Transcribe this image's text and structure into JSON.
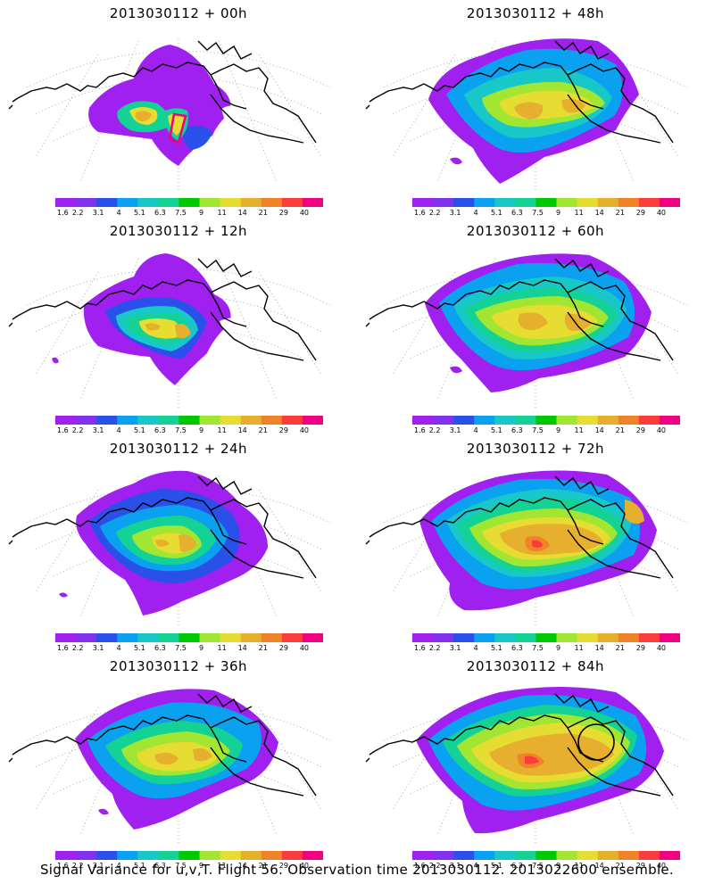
{
  "panels": [
    {
      "title": "2013030112 + 00h"
    },
    {
      "title": "2013030112 + 48h"
    },
    {
      "title": "2013030112 + 12h"
    },
    {
      "title": "2013030112 + 60h"
    },
    {
      "title": "2013030112 + 24h"
    },
    {
      "title": "2013030112 + 72h"
    },
    {
      "title": "2013030112 + 36h"
    },
    {
      "title": "2013030112 + 84h"
    }
  ],
  "colorbar": {
    "colors": [
      "#a020f0",
      "#8230ea",
      "#2a50ea",
      "#0aa2f0",
      "#18c8c8",
      "#14d296",
      "#00c800",
      "#a0e632",
      "#e6dc32",
      "#e6af2d",
      "#f08228",
      "#fa3c3c",
      "#f00082"
    ],
    "labels": [
      "1.6",
      "2.2",
      "3.1",
      "4",
      "5.1",
      "6.3",
      "7.5",
      "9",
      "11",
      "14",
      "21",
      "29",
      "40"
    ]
  },
  "footer": "Signal Variance for u,v,T. Flight 56. Observation time 2013030112. 2013022600 ensemble."
}
